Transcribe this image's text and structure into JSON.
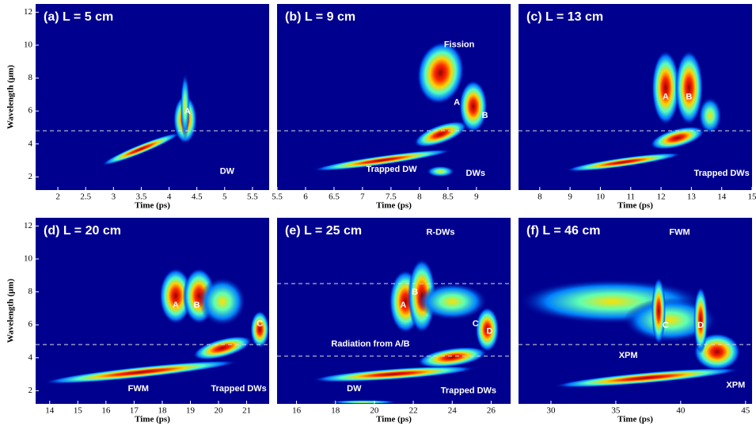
{
  "chart_data": [
    {
      "type": "heatmap",
      "title": "(a) L = 5 cm",
      "x_label": "Time (ps)",
      "y_label": "Wavelength (μm)",
      "xlim": [
        1.6,
        5.8
      ],
      "xticks": [
        2,
        2.5,
        3,
        3.5,
        4,
        4.5,
        5,
        5.5
      ],
      "ylim": [
        1.2,
        12.5
      ],
      "yticks": [
        2,
        4,
        6,
        8,
        10,
        12
      ],
      "hlines": [
        4.8
      ],
      "annotations": [
        "A",
        "DW"
      ]
    },
    {
      "type": "heatmap",
      "title": "(b) L = 9 cm",
      "x_label": "Time (ps)",
      "xlim": [
        5.5,
        9.6
      ],
      "xticks": [
        5.5,
        6,
        6.5,
        7,
        7.5,
        8,
        8.5,
        9
      ],
      "ylim": [
        1.2,
        12.5
      ],
      "hlines": [
        4.8
      ],
      "annotations": [
        "Fission",
        "A",
        "B",
        "Trapped DW",
        "DWs"
      ]
    },
    {
      "type": "heatmap",
      "title": "(c) L = 13 cm",
      "x_label": "Time (ps)",
      "xlim": [
        7.3,
        15
      ],
      "xticks": [
        8,
        9,
        10,
        11,
        12,
        13,
        14,
        15
      ],
      "ylim": [
        1.2,
        12.5
      ],
      "hlines": [
        4.8
      ],
      "annotations": [
        "A",
        "B",
        "Trapped DWs"
      ]
    },
    {
      "type": "heatmap",
      "title": "(d) L = 20 cm",
      "x_label": "Time (ps)",
      "y_label": "Wavelength (μm)",
      "xlim": [
        13.5,
        21.8
      ],
      "xticks": [
        14,
        15,
        16,
        17,
        18,
        19,
        20,
        21
      ],
      "ylim": [
        1.2,
        12.5
      ],
      "yticks": [
        2,
        4,
        6,
        8,
        10,
        12
      ],
      "hlines": [
        4.8
      ],
      "annotations": [
        "A",
        "B",
        "C",
        "FWM",
        "Trapped DWs"
      ]
    },
    {
      "type": "heatmap",
      "title": "(e) L = 25 cm",
      "x_label": "Time (ps)",
      "xlim": [
        15,
        27
      ],
      "xticks": [
        16,
        18,
        20,
        22,
        24,
        26
      ],
      "ylim": [
        1.2,
        12.5
      ],
      "hlines": [
        8.5,
        4.1
      ],
      "annotations": [
        "R-DWs",
        "A",
        "B",
        "Radiation from A/B",
        "C",
        "D",
        "DW",
        "Trapped DWs"
      ]
    },
    {
      "type": "heatmap",
      "title": "(f) L = 46 cm",
      "x_label": "Time (ps)",
      "xlim": [
        27.5,
        45.5
      ],
      "xticks": [
        30,
        35,
        40,
        45
      ],
      "ylim": [
        1.2,
        12.5
      ],
      "hlines": [
        4.8
      ],
      "annotations": [
        "FWM",
        "C",
        "D",
        "XPM",
        "XPM"
      ]
    }
  ]
}
